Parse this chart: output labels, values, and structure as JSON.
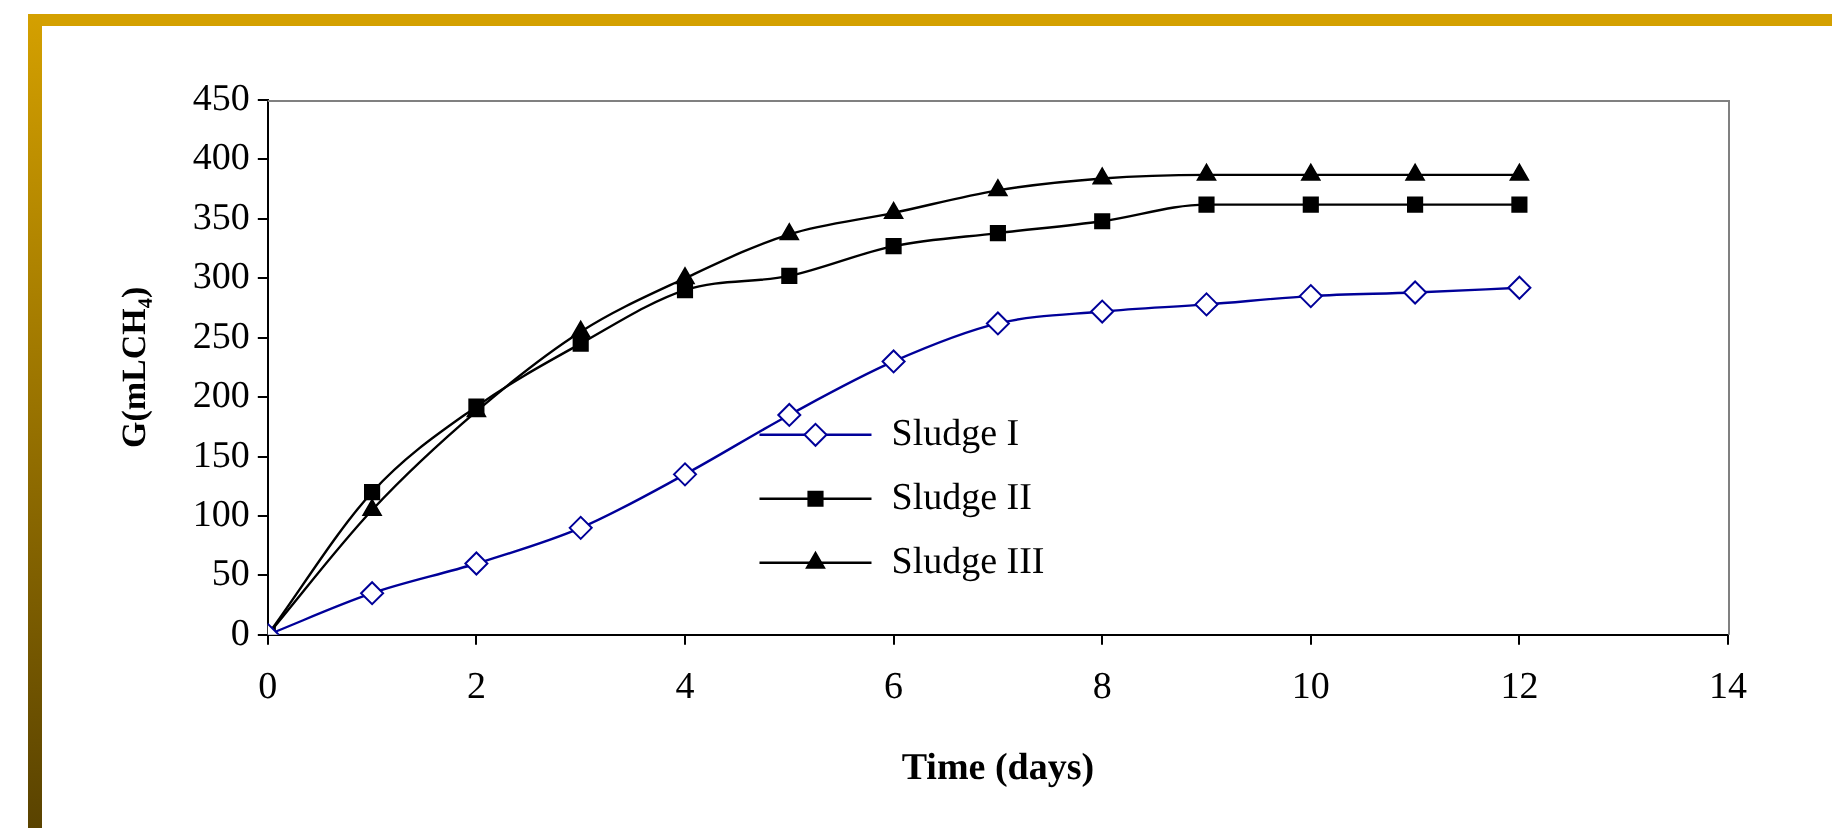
{
  "chart_data": {
    "type": "line",
    "xlabel": "Time (days)",
    "ylabel": "G(mLCH₄)",
    "x": [
      0,
      1,
      2,
      3,
      4,
      5,
      6,
      7,
      8,
      9,
      10,
      11,
      12
    ],
    "xlim": [
      0,
      14
    ],
    "xticks": [
      0,
      2,
      4,
      6,
      8,
      10,
      12,
      14
    ],
    "ylim": [
      0,
      450
    ],
    "yticks": [
      0,
      50,
      100,
      150,
      200,
      250,
      300,
      350,
      400,
      450
    ],
    "grid": false,
    "legend": "bottom",
    "series": [
      {
        "name": "Sludge I",
        "color": "#000099",
        "marker": "diamond",
        "values": [
          0,
          35,
          60,
          90,
          135,
          185,
          230,
          262,
          272,
          278,
          285,
          288,
          292
        ]
      },
      {
        "name": "Sludge II",
        "color": "#000000",
        "marker": "square",
        "values": [
          0,
          120,
          192,
          245,
          290,
          302,
          327,
          338,
          348,
          362,
          362,
          362,
          362
        ]
      },
      {
        "name": "Sludge III",
        "color": "#000000",
        "marker": "triangle",
        "values": [
          0,
          105,
          188,
          255,
          300,
          337,
          355,
          374,
          384,
          387,
          387,
          387,
          387
        ]
      }
    ]
  }
}
